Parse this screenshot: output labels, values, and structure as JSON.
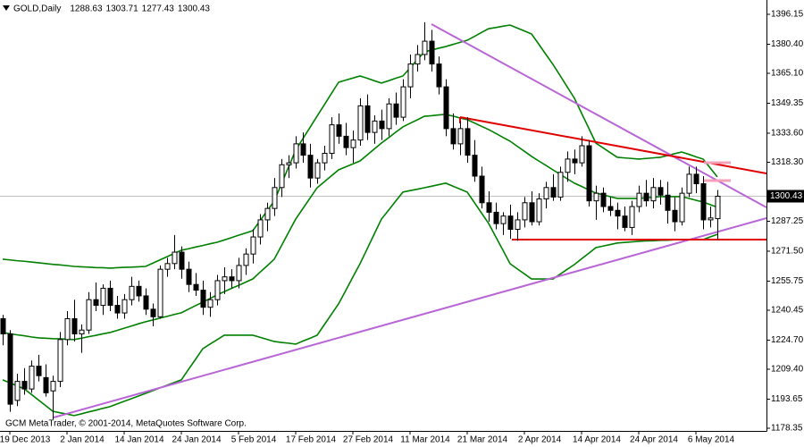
{
  "chart_data": {
    "type": "candlestick",
    "title": "GOLD,Daily",
    "copyright": "GCM MetaTrader, © 2001-2014, MetaQuotes Software Corp.",
    "categories": [
      null,
      "19 Dec 2013",
      null,
      null,
      null,
      null,
      null,
      null,
      null,
      "2 Jan 2014",
      null,
      null,
      null,
      null,
      null,
      null,
      null,
      "14 Jan 2014",
      null,
      null,
      null,
      null,
      null,
      null,
      null,
      "24 Jan 2014",
      null,
      null,
      null,
      null,
      null,
      null,
      null,
      "5 Feb 2014",
      null,
      null,
      null,
      null,
      null,
      null,
      null,
      "17 Feb 2014",
      null,
      null,
      null,
      null,
      null,
      null,
      null,
      "27 Feb 2014",
      null,
      null,
      null,
      null,
      null,
      null,
      null,
      "11 Mar 2014",
      null,
      null,
      null,
      null,
      null,
      null,
      null,
      "21 Mar 2014",
      null,
      null,
      null,
      null,
      null,
      null,
      null,
      "2 Apr 2014",
      null,
      null,
      null,
      null,
      null,
      null,
      null,
      "14 Apr 2014",
      null,
      null,
      null,
      null,
      null,
      null,
      null,
      "24 Apr 2014",
      null,
      null,
      null,
      null,
      null,
      null,
      null,
      "6 May 2014",
      null,
      null,
      null
    ],
    "open": [
      1236,
      1228,
      1193,
      1203,
      1199,
      1211,
      1205,
      1198,
      1203,
      1225,
      1236,
      1228,
      1230,
      1246,
      1243,
      1252,
      1243,
      1239,
      1246,
      1253,
      1248,
      1241,
      1237,
      1262,
      1265,
      1271,
      1262,
      1254,
      1251,
      1242,
      1246,
      1256,
      1258,
      1256,
      1264,
      1270,
      1279,
      1288,
      1294,
      1305,
      1317,
      1318,
      1328,
      1322,
      1310,
      1318,
      1323,
      1338,
      1332,
      1326,
      1330,
      1348,
      1334,
      1340,
      1336,
      1349,
      1342,
      1358,
      1370,
      1375,
      1382,
      1370,
      1358,
      1336,
      1328,
      1336,
      1322,
      1311,
      1297,
      1292,
      1286,
      1290,
      1283,
      1288,
      1297,
      1287,
      1299,
      1305,
      1300,
      1313,
      1320,
      1318,
      1327,
      1298,
      1302,
      1295,
      1293,
      1290,
      1284,
      1295,
      1302,
      1298,
      1305,
      1301,
      1293,
      1287,
      1302,
      1312,
      1307,
      1288,
      1288.63
    ],
    "high": [
      1238,
      1230,
      1207,
      1210,
      1214,
      1217,
      1212,
      1206,
      1229,
      1240,
      1246,
      1233,
      1250,
      1255,
      1254,
      1256,
      1248,
      1249,
      1258,
      1256,
      1252,
      1244,
      1264,
      1268,
      1280,
      1274,
      1266,
      1260,
      1256,
      1250,
      1259,
      1263,
      1262,
      1268,
      1273,
      1283,
      1291,
      1297,
      1310,
      1320,
      1322,
      1332,
      1334,
      1328,
      1320,
      1327,
      1342,
      1344,
      1339,
      1335,
      1352,
      1354,
      1343,
      1346,
      1352,
      1355,
      1362,
      1375,
      1380,
      1392,
      1388,
      1374,
      1362,
      1344,
      1340,
      1342,
      1330,
      1316,
      1303,
      1297,
      1292,
      1296,
      1292,
      1300,
      1303,
      1302,
      1308,
      1312,
      1316,
      1324,
      1325,
      1332,
      1330,
      1306,
      1305,
      1300,
      1297,
      1295,
      1298,
      1306,
      1309,
      1310,
      1309,
      1308,
      1300,
      1305,
      1316,
      1316,
      1311,
      1295,
      1303.71
    ],
    "low": [
      1222,
      1187,
      1190,
      1196,
      1197,
      1203,
      1195,
      1183,
      1200,
      1222,
      1224,
      1218,
      1228,
      1240,
      1238,
      1240,
      1236,
      1236,
      1243,
      1245,
      1238,
      1232,
      1236,
      1258,
      1262,
      1257,
      1250,
      1248,
      1238,
      1237,
      1243,
      1249,
      1252,
      1252,
      1259,
      1265,
      1275,
      1282,
      1290,
      1300,
      1310,
      1315,
      1318,
      1305,
      1307,
      1314,
      1320,
      1328,
      1322,
      1318,
      1327,
      1330,
      1328,
      1330,
      1332,
      1338,
      1340,
      1352,
      1366,
      1372,
      1366,
      1354,
      1332,
      1325,
      1322,
      1318,
      1308,
      1294,
      1287,
      1283,
      1280,
      1278,
      1277,
      1284,
      1285,
      1285,
      1294,
      1298,
      1298,
      1308,
      1312,
      1316,
      1295,
      1288,
      1292,
      1290,
      1283,
      1282,
      1280,
      1292,
      1295,
      1294,
      1296,
      1286,
      1282,
      1285,
      1300,
      1302,
      1283,
      1284,
      1277.43
    ],
    "close": [
      1228,
      1191,
      1203,
      1199,
      1211,
      1206,
      1197,
      1203,
      1225,
      1236,
      1228,
      1230,
      1246,
      1243,
      1252,
      1243,
      1239,
      1246,
      1253,
      1248,
      1241,
      1237,
      1262,
      1265,
      1271,
      1262,
      1254,
      1251,
      1242,
      1246,
      1256,
      1258,
      1256,
      1264,
      1270,
      1279,
      1288,
      1294,
      1305,
      1317,
      1318,
      1328,
      1322,
      1310,
      1318,
      1323,
      1338,
      1332,
      1326,
      1330,
      1348,
      1334,
      1340,
      1336,
      1349,
      1342,
      1358,
      1370,
      1375,
      1382,
      1370,
      1358,
      1336,
      1328,
      1336,
      1322,
      1311,
      1297,
      1292,
      1286,
      1290,
      1283,
      1288,
      1297,
      1287,
      1299,
      1305,
      1300,
      1313,
      1320,
      1318,
      1327,
      1298,
      1302,
      1295,
      1293,
      1290,
      1284,
      1295,
      1302,
      1298,
      1305,
      1301,
      1293,
      1287,
      1302,
      1312,
      1307,
      1288,
      1289,
      1300.43
    ],
    "bullish_color": "#ffffff",
    "bearish_color": "#000000",
    "series": [
      {
        "color": "#008000",
        "values": [
          1267.3,
          1266.9,
          1266.5,
          1266.2,
          1265.8,
          1265.4,
          1265.0,
          1264.6,
          1264.3,
          1263.9,
          1263.5,
          1263.3,
          1263.1,
          1262.9,
          1262.8,
          1262.6,
          1262.8,
          1263.0,
          1263.1,
          1263.3,
          1263.5,
          1265.2,
          1266.9,
          1268.6,
          1270.3,
          1272.0,
          1272.8,
          1273.7,
          1274.5,
          1275.4,
          1276.2,
          1277.4,
          1278.6,
          1279.9,
          1281.1,
          1282.3,
          1287.5,
          1292.7,
          1297.9,
          1306.8,
          1315.8,
          1324.7,
          1330.7,
          1336.6,
          1342.6,
          1348.5,
          1354.5,
          1360.4,
          1361.5,
          1362.6,
          1363.7,
          1362.5,
          1361.2,
          1360.0,
          1361.2,
          1362.5,
          1363.7,
          1367.9,
          1372.2,
          1376.4,
          1377.3,
          1378.3,
          1379.2,
          1380.3,
          1381.4,
          1382.5,
          1384.5,
          1386.6,
          1388.6,
          1389.2,
          1389.9,
          1390.5,
          1388.9,
          1387.4,
          1385.8,
          1380.5,
          1375.1,
          1369.8,
          1363.9,
          1357.9,
          1352.0,
          1344.1,
          1336.3,
          1328.4,
          1325.9,
          1323.4,
          1320.9,
          1320.6,
          1320.3,
          1320.0,
          1320.3,
          1320.6,
          1320.9,
          1321.8,
          1322.8,
          1323.7,
          1322.5,
          1321.2,
          1320.0,
          1315.3,
          1310.6
        ]
      },
      {
        "color": "#008000",
        "values": [
          1228.7,
          1228.1,
          1227.5,
          1227.0,
          1226.4,
          1225.9,
          1225.7,
          1225.5,
          1225.4,
          1225.2,
          1225.0,
          1225.7,
          1226.5,
          1227.2,
          1228.0,
          1228.7,
          1229.8,
          1231.0,
          1232.1,
          1233.3,
          1234.4,
          1235.3,
          1236.3,
          1237.2,
          1238.2,
          1239.1,
          1241.0,
          1242.9,
          1244.7,
          1246.6,
          1248.5,
          1250.2,
          1251.9,
          1253.5,
          1255.2,
          1256.9,
          1260.4,
          1263.8,
          1267.3,
          1274.3,
          1281.4,
          1288.4,
          1293.9,
          1299.4,
          1304.9,
          1308.0,
          1311.2,
          1314.3,
          1315.9,
          1317.4,
          1319.0,
          1322.1,
          1325.3,
          1328.4,
          1331.2,
          1334.1,
          1336.9,
          1338.8,
          1340.6,
          1342.5,
          1342.8,
          1343.2,
          1343.5,
          1342.6,
          1341.6,
          1340.7,
          1339.0,
          1337.2,
          1335.5,
          1333.5,
          1331.4,
          1329.4,
          1326.7,
          1324.1,
          1321.4,
          1319.0,
          1316.7,
          1314.3,
          1312.0,
          1309.6,
          1307.3,
          1305.6,
          1303.8,
          1302.1,
          1301.2,
          1300.2,
          1299.3,
          1299.3,
          1299.3,
          1299.3,
          1299.6,
          1299.9,
          1300.2,
          1300.2,
          1300.2,
          1300.2,
          1299.3,
          1298.3,
          1297.4,
          1296.0,
          1294.6
        ]
      },
      {
        "color": "#008000",
        "values": [
          1203.8,
          1202.2,
          1200.7,
          1199.1,
          1196.2,
          1193.2,
          1190.3,
          1187.3,
          1186.5,
          1185.8,
          1185.0,
          1185.9,
          1186.9,
          1187.8,
          1188.8,
          1189.7,
          1191.1,
          1192.5,
          1193.9,
          1195.3,
          1196.7,
          1198.1,
          1199.6,
          1201.0,
          1202.4,
          1203.8,
          1209.3,
          1214.7,
          1220.2,
          1222.6,
          1224.9,
          1227.3,
          1227.3,
          1227.3,
          1227.3,
          1227.3,
          1226.2,
          1225.1,
          1224.0,
          1223.5,
          1223.1,
          1222.6,
          1224.2,
          1225.7,
          1227.3,
          1232.8,
          1238.3,
          1243.8,
          1250.8,
          1257.9,
          1264.9,
          1272.7,
          1280.6,
          1288.4,
          1293.1,
          1297.9,
          1302.6,
          1303.4,
          1304.1,
          1304.9,
          1305.7,
          1306.5,
          1307.3,
          1305.7,
          1304.2,
          1302.6,
          1297.1,
          1291.6,
          1286.1,
          1279.0,
          1272.0,
          1264.9,
          1262.2,
          1259.6,
          1256.9,
          1256.9,
          1256.9,
          1256.9,
          1259.4,
          1262.0,
          1264.5,
          1267.5,
          1270.4,
          1273.4,
          1274.2,
          1275.0,
          1275.8,
          1276.1,
          1276.4,
          1276.7,
          1276.9,
          1277.0,
          1277.2,
          1277.3,
          1277.5,
          1277.6,
          1277.6,
          1277.6,
          1277.6,
          1279.0,
          1280.4
        ]
      }
    ],
    "ylim": [
      1176.94,
      1403.68
    ],
    "yticks": [
      1396.15,
      {
        "value": 1380.4,
        "label": "1380.40"
      },
      {
        "value": 1365.1,
        "label": "1365.10"
      },
      1349.35,
      {
        "value": 1333.6,
        "label": "1333.60"
      },
      {
        "value": 1318.3,
        "label": "1318.30"
      },
      1287.25,
      {
        "value": 1271.5,
        "label": "1271.50"
      },
      1255.75,
      1240.45,
      {
        "value": 1224.7,
        "label": "1224.70"
      },
      {
        "value": 1209.4,
        "label": "1209.40"
      },
      1193.65,
      1178.35
    ],
    "bid_line": true
  }
}
